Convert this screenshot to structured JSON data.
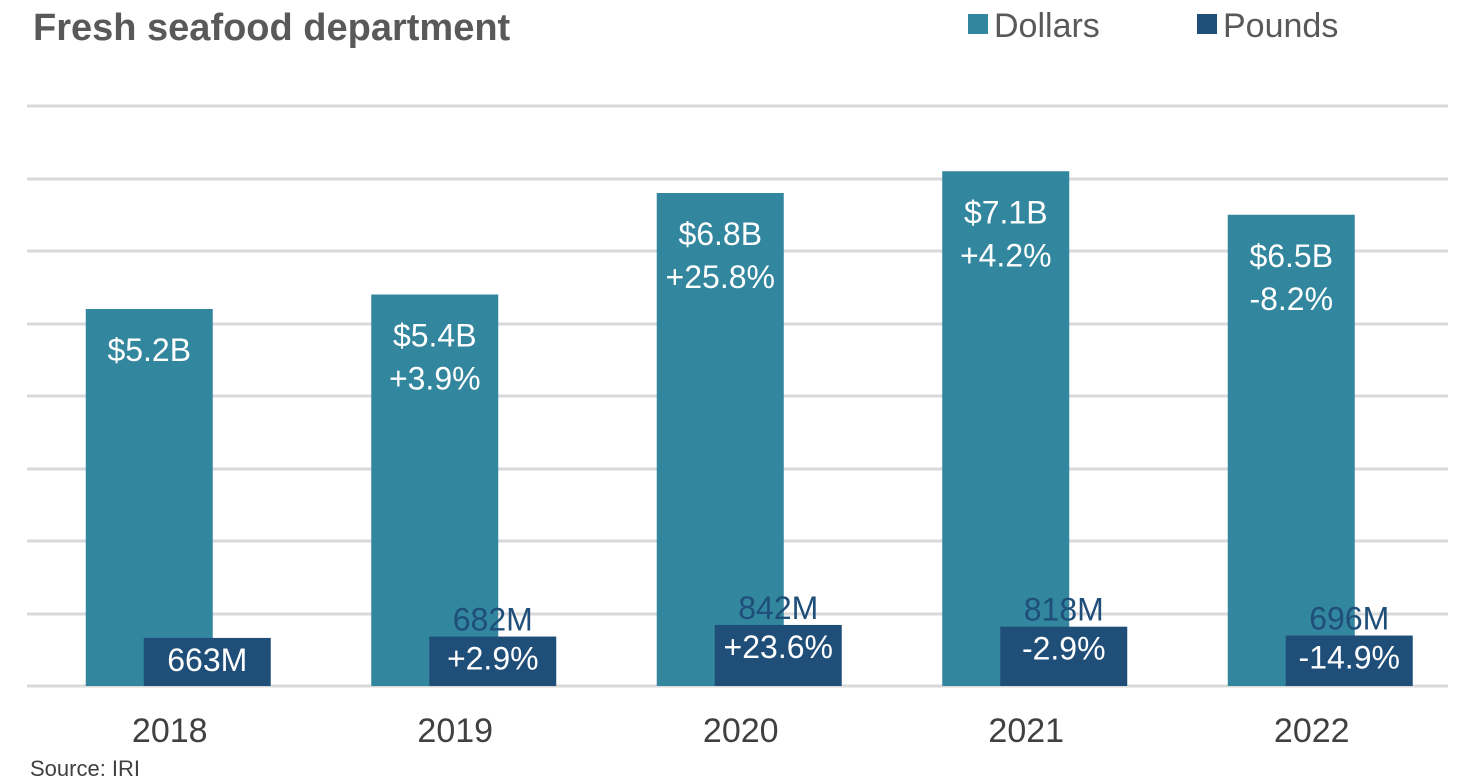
{
  "chart_data": {
    "type": "bar",
    "title": "Fresh seafood department",
    "source": "Source: IRI",
    "categories": [
      "2018",
      "2019",
      "2020",
      "2021",
      "2022"
    ],
    "legend_position": "top-right",
    "grid": true,
    "ylim_dollars_billions": [
      0,
      8
    ],
    "ylim_pounds_millions": [
      0,
      8000
    ],
    "series": [
      {
        "name": "Dollars",
        "color": "#32869e",
        "values": [
          5.2,
          5.4,
          6.8,
          7.1,
          6.5
        ],
        "labels": [
          "$5.2B",
          "$5.4B",
          "$6.8B",
          "$7.1B",
          "$6.5B"
        ],
        "changes": [
          "",
          "+3.9%",
          "+25.8%",
          "+4.2%",
          "-8.2%"
        ]
      },
      {
        "name": "Pounds",
        "color": "#1f4e79",
        "values": [
          663,
          682,
          842,
          818,
          696
        ],
        "labels": [
          "663M",
          "682M",
          "842M",
          "818M",
          "696M"
        ],
        "changes": [
          "",
          "+2.9%",
          "+23.6%",
          "-2.9%",
          "-14.9%"
        ]
      }
    ]
  }
}
